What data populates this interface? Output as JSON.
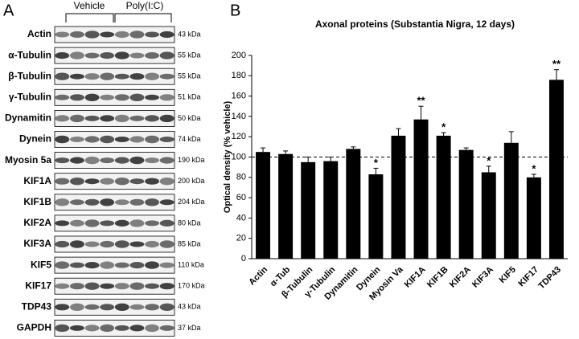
{
  "panel_a": {
    "label": "A",
    "groups": [
      "Vehicle",
      "Poly(I:C)"
    ],
    "rows": [
      {
        "name": "Actin",
        "kda": "43 kDa"
      },
      {
        "name": "α-Tubulin",
        "kda": "55 kDa"
      },
      {
        "name": "β-Tubulin",
        "kda": "55 kDa"
      },
      {
        "name": "γ-Tubulin",
        "kda": "51 kDa"
      },
      {
        "name": "Dynamitin",
        "kda": "50 kDa"
      },
      {
        "name": "Dynein",
        "kda": "74 kDa"
      },
      {
        "name": "Myosin 5a",
        "kda": "190 kDa"
      },
      {
        "name": "KIF1A",
        "kda": "200 kDa"
      },
      {
        "name": "KIF1B",
        "kda": "204 kDa"
      },
      {
        "name": "KIF2A",
        "kda": "80 kDa"
      },
      {
        "name": "KIF3A",
        "kda": "85 kDa"
      },
      {
        "name": "KIF5",
        "kda": "110 kDa"
      },
      {
        "name": "KIF17",
        "kda": "170 kDa"
      },
      {
        "name": "TDP43",
        "kda": "43 kDa"
      },
      {
        "name": "GAPDH",
        "kda": "37 kDa"
      }
    ]
  },
  "chart_data": {
    "type": "bar",
    "label": "B",
    "title": "Axonal proteins (Substantia Nigra, 12 days)",
    "y_label": "Optical density (% vehicle)",
    "categories": [
      "Actin",
      "α-Tub",
      "β-Tubulin",
      "γ-Tubulin",
      "Dynamitin",
      "Dynein",
      "Myosin Va",
      "KIF1A",
      "KIF1B",
      "KIF2A",
      "KIF3A",
      "KIF5",
      "KIF17",
      "TDP43"
    ],
    "values": [
      105,
      103,
      95,
      96,
      108,
      83,
      121,
      137,
      121,
      107,
      85,
      114,
      80,
      176
    ],
    "errors": [
      4,
      3,
      5,
      4,
      2,
      6,
      7,
      13,
      3,
      2,
      6,
      11,
      3,
      10
    ],
    "significance": [
      null,
      null,
      null,
      null,
      null,
      "*",
      null,
      "**",
      "*",
      null,
      "*",
      null,
      "*",
      "**"
    ],
    "reference_line": 100,
    "color": "#000000",
    "ylim": [
      0,
      200
    ],
    "yticks": [
      0,
      20,
      40,
      60,
      80,
      100,
      120,
      140,
      160,
      180,
      200
    ]
  }
}
